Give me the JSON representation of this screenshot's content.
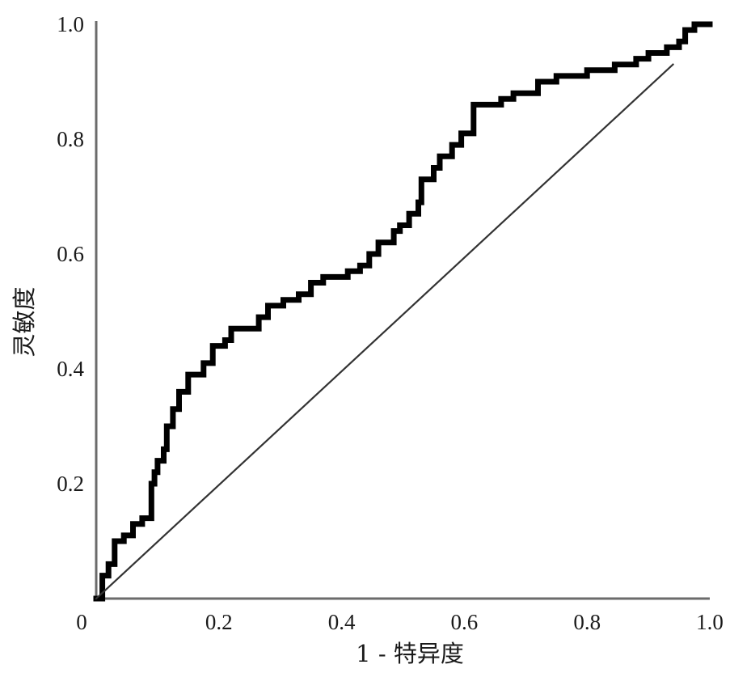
{
  "chart_data": {
    "type": "line",
    "title": "",
    "xlabel": "1 - 特异度",
    "ylabel": "灵敏度",
    "xlim": [
      0,
      1
    ],
    "ylim": [
      0,
      1
    ],
    "grid": false,
    "x_ticks": [
      {
        "value": 0,
        "label": "0"
      },
      {
        "value": 0.2,
        "label": "0.2"
      },
      {
        "value": 0.4,
        "label": "0.4"
      },
      {
        "value": 0.6,
        "label": "0.6"
      },
      {
        "value": 0.8,
        "label": "0.8"
      },
      {
        "value": 1.0,
        "label": "1.0"
      }
    ],
    "y_ticks": [
      {
        "value": 0.2,
        "label": "0.2"
      },
      {
        "value": 0.4,
        "label": "0.4"
      },
      {
        "value": 0.6,
        "label": "0.6"
      },
      {
        "value": 0.8,
        "label": "0.8"
      },
      {
        "value": 1.0,
        "label": "1.0"
      }
    ],
    "series": [
      {
        "style": "step",
        "color": "#000000",
        "x": [
          0,
          0.01,
          0.01,
          0.02,
          0.02,
          0.03,
          0.03,
          0.045,
          0.045,
          0.06,
          0.06,
          0.075,
          0.075,
          0.09,
          0.09,
          0.095,
          0.095,
          0.1,
          0.1,
          0.11,
          0.11,
          0.115,
          0.115,
          0.125,
          0.125,
          0.135,
          0.135,
          0.15,
          0.15,
          0.175,
          0.175,
          0.19,
          0.19,
          0.21,
          0.21,
          0.22,
          0.22,
          0.265,
          0.265,
          0.28,
          0.28,
          0.305,
          0.305,
          0.33,
          0.33,
          0.35,
          0.35,
          0.37,
          0.37,
          0.41,
          0.41,
          0.43,
          0.43,
          0.445,
          0.445,
          0.46,
          0.46,
          0.485,
          0.485,
          0.495,
          0.495,
          0.51,
          0.51,
          0.525,
          0.525,
          0.53,
          0.53,
          0.55,
          0.55,
          0.56,
          0.56,
          0.58,
          0.58,
          0.595,
          0.595,
          0.615,
          0.615,
          0.66,
          0.66,
          0.68,
          0.68,
          0.72,
          0.72,
          0.75,
          0.75,
          0.8,
          0.8,
          0.845,
          0.845,
          0.88,
          0.88,
          0.9,
          0.9,
          0.93,
          0.93,
          0.95,
          0.95,
          0.96,
          0.96,
          0.975,
          0.975,
          1.0
        ],
        "y": [
          0,
          0,
          0.04,
          0.04,
          0.06,
          0.06,
          0.1,
          0.1,
          0.11,
          0.11,
          0.13,
          0.13,
          0.14,
          0.14,
          0.2,
          0.2,
          0.22,
          0.22,
          0.24,
          0.24,
          0.26,
          0.26,
          0.3,
          0.3,
          0.33,
          0.33,
          0.36,
          0.36,
          0.39,
          0.39,
          0.41,
          0.41,
          0.44,
          0.44,
          0.45,
          0.45,
          0.47,
          0.47,
          0.49,
          0.49,
          0.51,
          0.51,
          0.52,
          0.52,
          0.53,
          0.53,
          0.55,
          0.55,
          0.56,
          0.56,
          0.57,
          0.57,
          0.58,
          0.58,
          0.6,
          0.6,
          0.62,
          0.62,
          0.64,
          0.64,
          0.65,
          0.65,
          0.67,
          0.67,
          0.69,
          0.69,
          0.73,
          0.73,
          0.75,
          0.75,
          0.77,
          0.77,
          0.79,
          0.79,
          0.81,
          0.81,
          0.86,
          0.86,
          0.87,
          0.87,
          0.88,
          0.88,
          0.9,
          0.9,
          0.91,
          0.91,
          0.92,
          0.92,
          0.93,
          0.93,
          0.94,
          0.94,
          0.95,
          0.95,
          0.96,
          0.96,
          0.97,
          0.97,
          0.99,
          0.99,
          1.0,
          1.0
        ]
      },
      {
        "style": "reference",
        "color": "#333333",
        "x": [
          0,
          0.94
        ],
        "y": [
          0,
          0.93
        ]
      }
    ]
  }
}
